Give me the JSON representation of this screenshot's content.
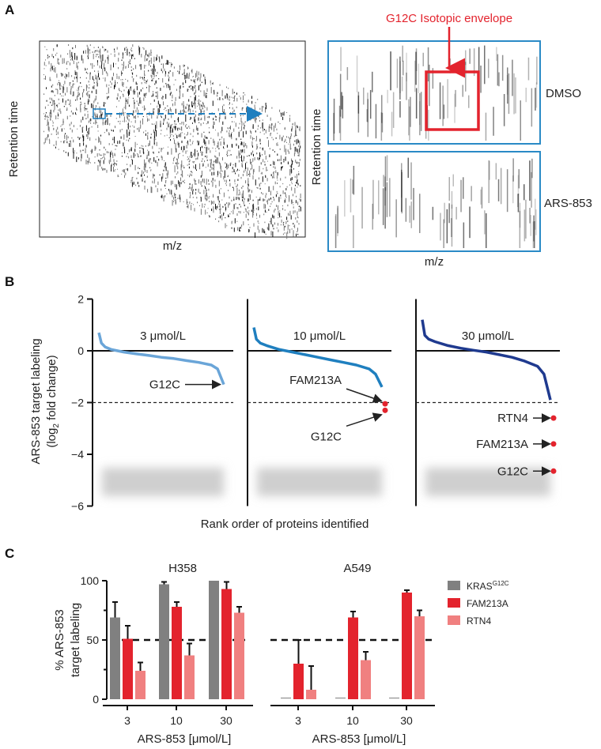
{
  "panel_labels": [
    "A",
    "B",
    "C"
  ],
  "panel_a": {
    "left_ylabel": "Retention time",
    "left_xlabel": "m/z",
    "right_ylabel": "Retention time",
    "right_xlabel": "m/z",
    "top_condition": "DMSO",
    "bottom_condition": "ARS-853",
    "annotation": "G12C Isotopic envelope",
    "colors": {
      "frame": "#2a8ac6",
      "highlight": "#e3232d"
    }
  },
  "chart_data": [
    {
      "type": "scatter",
      "panel": "B",
      "ylabel_line1": "ARS-853 target labeling",
      "ylabel_line2_prefix": "(log",
      "ylabel_line2_sub": "2",
      "ylabel_line2_suffix": " fold change)",
      "xlabel": "Rank order of proteins identified",
      "ylim": [
        -6,
        2
      ],
      "yticks": [
        "2",
        "0",
        "−2",
        "−4",
        "−6"
      ],
      "ytick_values": [
        2,
        0,
        -2,
        -4,
        -6
      ],
      "threshold": -2,
      "subplots": [
        {
          "title": "3 μmol/L",
          "color": "#6aa5d8",
          "rank_fraction": [
            0,
            0.02,
            0.05,
            0.1,
            0.2,
            0.3,
            0.4,
            0.5,
            0.6,
            0.7,
            0.8,
            0.9,
            0.95,
            1
          ],
          "values": [
            0.7,
            0.3,
            0.15,
            0.05,
            -0.05,
            -0.12,
            -0.18,
            -0.25,
            -0.3,
            -0.38,
            -0.45,
            -0.55,
            -0.7,
            -1.3
          ],
          "highlights": [
            {
              "label": "G12C",
              "value": -1.3,
              "color": "#222222"
            }
          ]
        },
        {
          "title": "10 μmol/L",
          "color": "#1f7fbf",
          "rank_fraction": [
            0,
            0.02,
            0.05,
            0.1,
            0.2,
            0.3,
            0.4,
            0.5,
            0.6,
            0.7,
            0.8,
            0.9,
            0.95,
            1
          ],
          "values": [
            0.9,
            0.45,
            0.3,
            0.2,
            0.05,
            -0.05,
            -0.15,
            -0.25,
            -0.35,
            -0.45,
            -0.55,
            -0.7,
            -0.9,
            -1.4
          ],
          "highlights": [
            {
              "label": "FAM213A",
              "value": -2.05,
              "color": "#e3232d"
            },
            {
              "label": "G12C",
              "value": -2.3,
              "color": "#e3232d"
            }
          ]
        },
        {
          "title": "30 μmol/L",
          "color": "#1f3a8f",
          "rank_fraction": [
            0,
            0.02,
            0.05,
            0.1,
            0.2,
            0.3,
            0.4,
            0.5,
            0.6,
            0.7,
            0.8,
            0.9,
            0.95,
            1
          ],
          "values": [
            1.2,
            0.6,
            0.45,
            0.35,
            0.2,
            0.1,
            0.02,
            -0.05,
            -0.15,
            -0.25,
            -0.4,
            -0.6,
            -0.9,
            -1.9
          ],
          "highlights": [
            {
              "label": "RTN4",
              "value": -2.6,
              "color": "#e3232d"
            },
            {
              "label": "FAM213A",
              "value": -3.6,
              "color": "#e3232d"
            },
            {
              "label": "G12C",
              "value": -4.65,
              "color": "#e3232d"
            }
          ]
        }
      ]
    },
    {
      "type": "bar",
      "panel": "C",
      "ylabel_line1": "% ARS-853",
      "ylabel_line2": "target labeling",
      "ylim": [
        0,
        100
      ],
      "yticks": [
        "0",
        "50",
        "100"
      ],
      "ytick_values": [
        0,
        50,
        100
      ],
      "threshold": 50,
      "legend_position": "right",
      "series": [
        {
          "name": "KRAS",
          "name_sup": "G12C",
          "color": "#808080"
        },
        {
          "name": "FAM213A",
          "color": "#e3232d"
        },
        {
          "name": "RTN4",
          "color": "#f08080"
        }
      ],
      "groups": [
        {
          "title": "H358",
          "xlabel": "ARS-853 [μmol/L]",
          "categories": [
            "3",
            "10",
            "30"
          ],
          "values": [
            [
              69,
              97,
              100
            ],
            [
              51,
              78,
              93
            ],
            [
              24,
              37,
              73
            ]
          ],
          "errors_upper": [
            [
              82,
              99,
              100
            ],
            [
              62,
              82,
              99
            ],
            [
              31,
              47,
              78
            ]
          ]
        },
        {
          "title": "A549",
          "xlabel": "ARS-853 [μmol/L]",
          "categories": [
            "3",
            "10",
            "30"
          ],
          "values": [
            [
              1,
              1,
              1
            ],
            [
              30,
              69,
              90
            ],
            [
              8,
              33,
              70
            ]
          ],
          "errors_upper": [
            [
              1,
              1,
              1
            ],
            [
              50,
              74,
              92
            ],
            [
              28,
              40,
              75
            ]
          ]
        }
      ]
    }
  ]
}
